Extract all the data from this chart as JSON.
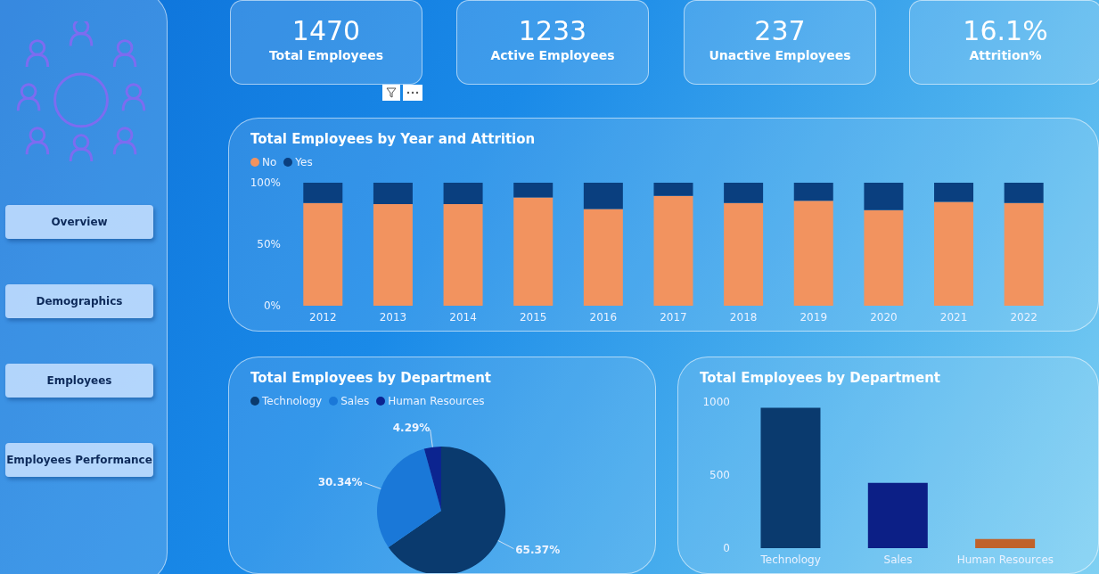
{
  "chart_data": [
    {
      "type": "other",
      "categories": [
        "Total Employees",
        "Active Employees",
        "Unactive Employees",
        "Attrition%"
      ],
      "values": [
        1470,
        1233,
        237,
        16.1
      ],
      "value_labels": [
        "1470",
        "1233",
        "237",
        "16.1%"
      ],
      "annotations": [
        "Overview",
        "Demographics",
        "Employees",
        "Employees Performance"
      ]
    },
    {
      "type": "bar",
      "title": "Total Employees by Year and Attrition",
      "stacked": true,
      "legend": "top left",
      "grid": false,
      "categories": [
        "2012",
        "2013",
        "2014",
        "2015",
        "2016",
        "2017",
        "2018",
        "2019",
        "2020",
        "2021",
        "2022"
      ],
      "ylim": [
        0,
        100
      ],
      "yticks": [
        {
          "value": 0,
          "label": "0%"
        },
        {
          "value": 50,
          "label": "50%"
        },
        {
          "value": 100,
          "label": "100%"
        }
      ],
      "series": [
        {
          "name": "No",
          "color": "#f2935f",
          "values": [
            83.5,
            82.6,
            82.6,
            88.0,
            78.6,
            89.3,
            83.5,
            85.3,
            77.7,
            84.4,
            83.5
          ]
        },
        {
          "name": "Yes",
          "color": "#0a3f7f",
          "values": [
            16.5,
            17.4,
            17.4,
            12.0,
            21.4,
            10.7,
            16.5,
            14.7,
            22.3,
            15.6,
            16.5
          ]
        }
      ]
    },
    {
      "type": "pie",
      "title": "Total Employees by Department",
      "legend": "top left",
      "categories": [
        "Technology",
        "Sales",
        "Human Resources"
      ],
      "values": [
        65.37,
        30.34,
        4.29
      ],
      "value_labels": [
        "65.37%",
        "30.34%",
        "4.29%"
      ],
      "colors": [
        "#0a3a6e",
        "#1a78d8",
        "#0c2490"
      ]
    },
    {
      "type": "bar",
      "title": "Total Employees by Department",
      "grid": false,
      "categories": [
        "Technology",
        "Sales",
        "Human Resources"
      ],
      "values": [
        961,
        446,
        63
      ],
      "colors": [
        "#0a3a6e",
        "#0c1f86",
        "#c0622a"
      ],
      "ylim": [
        0,
        1000
      ],
      "yticks": [
        0,
        500,
        1000
      ]
    }
  ]
}
